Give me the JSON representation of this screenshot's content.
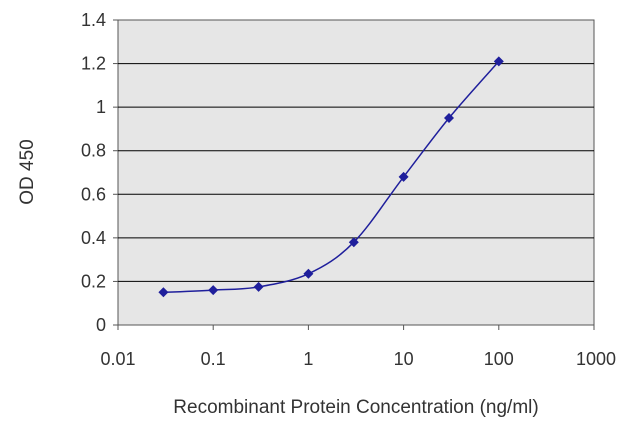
{
  "chart_data": {
    "type": "scatter",
    "xscale": "log",
    "yscale": "linear",
    "xlim": [
      0.01,
      1000
    ],
    "ylim": [
      0,
      1.4
    ],
    "x_ticks": [
      0.01,
      0.1,
      1,
      10,
      100,
      1000
    ],
    "x_tick_labels": [
      "0.01",
      "0.1",
      "1",
      "10",
      "100",
      "1000"
    ],
    "y_ticks": [
      0,
      0.2,
      0.4,
      0.6,
      0.8,
      1,
      1.2,
      1.4
    ],
    "y_tick_labels": [
      "0",
      "0.2",
      "0.4",
      "0.6",
      "0.8",
      "1",
      "1.2",
      "1.4"
    ],
    "xlabel": "Recombinant Protein Concentration (ng/ml)",
    "ylabel": "OD 450",
    "grid": "horizontal",
    "series": [
      {
        "x": [
          0.03,
          0.1,
          0.3,
          1,
          3,
          10,
          30,
          100
        ],
        "y": [
          0.15,
          0.16,
          0.175,
          0.235,
          0.38,
          0.68,
          0.95,
          1.21
        ],
        "style": "line-with-diamond-markers",
        "smooth": true
      }
    ],
    "colors": {
      "series": "#1f1f9c",
      "plot_background": "#e6e6e6",
      "gridline": "#000000",
      "axis": "#555555"
    }
  }
}
